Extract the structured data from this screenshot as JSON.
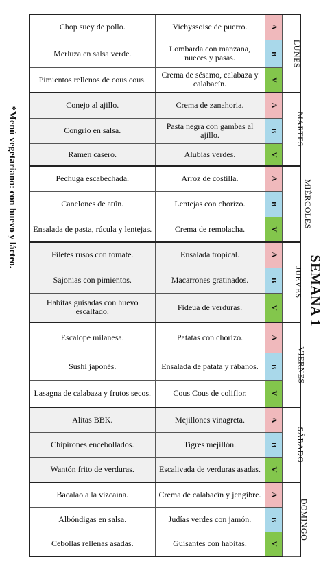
{
  "week_title": "SEMANA 1",
  "footnote": "*Menú vegetariano: con huevo y lácteo.",
  "tag_colors": {
    "A": "#f0b9bc",
    "B": "#a9d8ea",
    "V": "#83c64c"
  },
  "days": [
    {
      "name": "LUNES",
      "rows": [
        {
          "a": "Chop suey de pollo.",
          "b": "Vichyssoise de puerro.",
          "tag": "A"
        },
        {
          "a": "Merluza en salsa verde.",
          "b": "Lombarda con manzana, nueces y pasas.",
          "tag": "B"
        },
        {
          "a": "Pimientos rellenos de cous cous.",
          "b": "Crema de sésamo, calabaza y calabacín.",
          "tag": "V"
        }
      ]
    },
    {
      "name": "MARTES",
      "rows": [
        {
          "a": "Conejo al ajillo.",
          "b": "Crema de zanahoria.",
          "tag": "A"
        },
        {
          "a": "Congrio en salsa.",
          "b": "Pasta negra con gambas al ajillo.",
          "tag": "B"
        },
        {
          "a": "Ramen casero.",
          "b": "Alubias verdes.",
          "tag": "V"
        }
      ]
    },
    {
      "name": "MIÉRCOLES",
      "rows": [
        {
          "a": "Pechuga escabechada.",
          "b": "Arroz de costilla.",
          "tag": "A"
        },
        {
          "a": "Canelones de atún.",
          "b": "Lentejas con chorizo.",
          "tag": "B"
        },
        {
          "a": "Ensalada de pasta, rúcula y lentejas.",
          "b": "Crema de remolacha.",
          "tag": "V"
        }
      ]
    },
    {
      "name": "JUEVES",
      "rows": [
        {
          "a": "Filetes rusos con tomate.",
          "b": "Ensalada tropical.",
          "tag": "A"
        },
        {
          "a": "Sajonias  con pimientos.",
          "b": "Macarrones gratinados.",
          "tag": "B"
        },
        {
          "a": "Habitas guisadas con huevo escalfado.",
          "b": "Fideua de verduras.",
          "tag": "V"
        }
      ]
    },
    {
      "name": "VIERNES",
      "rows": [
        {
          "a": "Escalope milanesa.",
          "b": "Patatas con chorizo.",
          "tag": "A"
        },
        {
          "a": "Sushi japonés.",
          "b": "Ensalada de patata y rábanos.",
          "tag": "B"
        },
        {
          "a": "Lasagna de calabaza y frutos secos.",
          "b": "Cous Cous de coliflor.",
          "tag": "V"
        }
      ]
    },
    {
      "name": "SÁBADO",
      "rows": [
        {
          "a": "Alitas BBK.",
          "b": "Mejillones vinagreta.",
          "tag": "A"
        },
        {
          "a": "Chipirones encebollados.",
          "b": "Tigres mejillón.",
          "tag": "B"
        },
        {
          "a": "Wantón frito de verduras.",
          "b": "Escalivada de verduras asadas.",
          "tag": "V"
        }
      ]
    },
    {
      "name": "DOMINGO",
      "rows": [
        {
          "a": "Bacalao a la vizcaína.",
          "b": "Crema de calabacín y jengibre.",
          "tag": "A"
        },
        {
          "a": "Albóndigas en salsa.",
          "b": "Judías verdes con jamón.",
          "tag": "B"
        },
        {
          "a": "Cebollas rellenas asadas.",
          "b": "Guisantes con habitas.",
          "tag": "V"
        }
      ]
    }
  ]
}
